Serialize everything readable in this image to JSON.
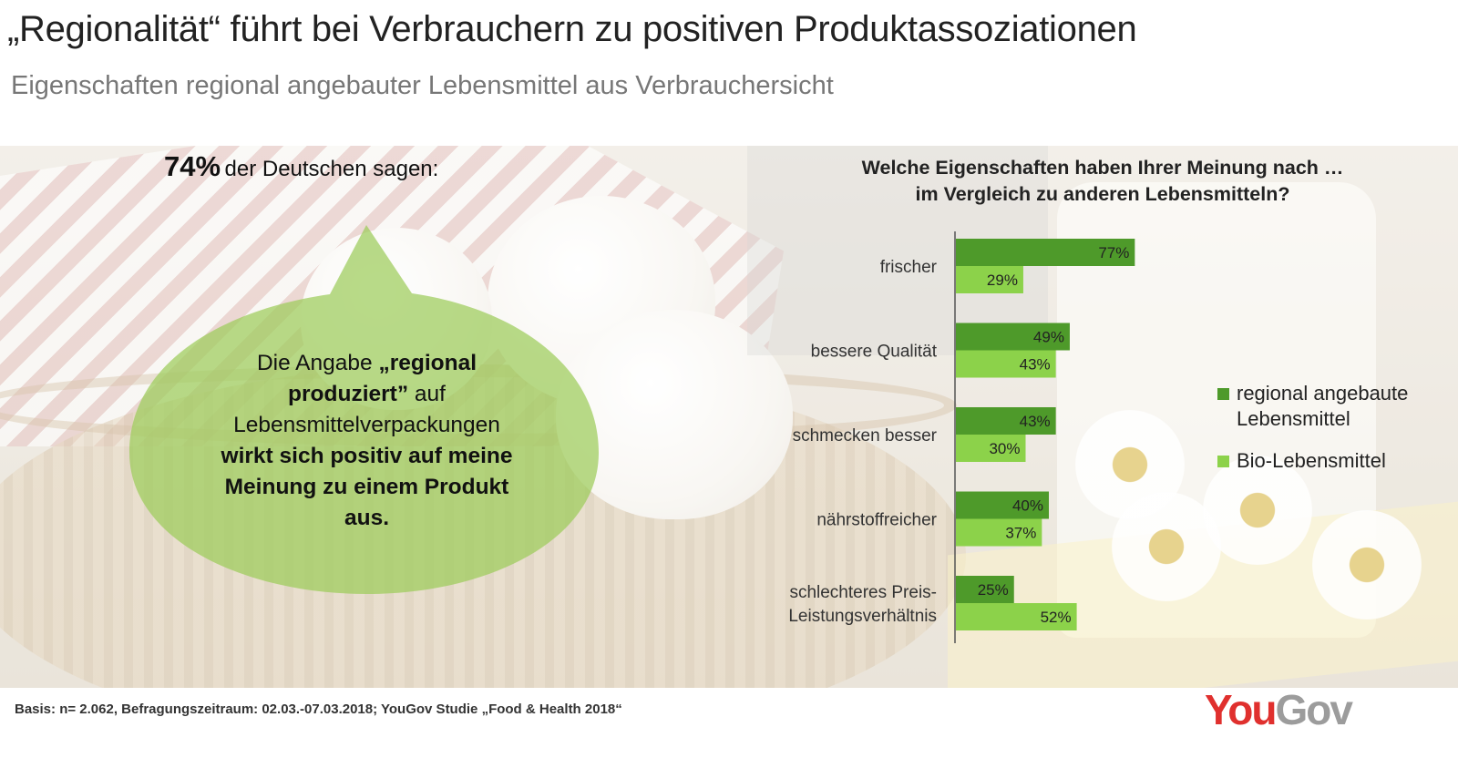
{
  "header": {
    "title": "„Regionalität“ führt bei Verbrauchern zu positiven Produktassoziationen",
    "subtitle": "Eigenschaften regional angebauter Lebensmittel aus Verbrauchersicht"
  },
  "callout": {
    "percent": "74%",
    "rest": "der Deutschen  sagen:",
    "bubble_intro": "Die Angabe ",
    "bubble_bold_1": "„regional produziert”",
    "bubble_middle": " auf Lebensmittelverpackungen ",
    "bubble_bold_2": "wirkt sich positiv auf meine Meinung zu einem Produkt aus.",
    "bubble_color": "#9ccc5a"
  },
  "footer": {
    "basis": "Basis: n= 2.062, Befragungszeitraum: 02.03.-07.03.2018; YouGov Studie „Food & Health 2018“"
  },
  "logo": {
    "you": "You",
    "gov": "Gov"
  },
  "chart_data": {
    "type": "bar",
    "orientation": "horizontal",
    "title": "Welche Eigenschaften haben Ihrer Meinung nach … im Vergleich zu anderen Lebensmitteln?",
    "title_lines": [
      "Welche Eigenschaften haben Ihrer Meinung nach …",
      "im Vergleich zu anderen Lebensmitteln?"
    ],
    "categories": [
      "frischer",
      "bessere Qualität",
      "schmecken besser",
      "nährstoffreicher",
      "schlechteres Preis-Leistungsverhältnis"
    ],
    "category_lines": [
      [
        "frischer"
      ],
      [
        "bessere Qualität"
      ],
      [
        "schmecken besser"
      ],
      [
        "nährstoffreicher"
      ],
      [
        "schlechteres Preis-",
        "Leistungsverhältnis"
      ]
    ],
    "series": [
      {
        "name": "regional angebaute Lebensmittel",
        "name_lines": [
          "regional angebaute",
          "Lebensmittel"
        ],
        "color": "#4e9a2a",
        "values": [
          77,
          49,
          43,
          40,
          25
        ],
        "labels": [
          "77%",
          "49%",
          "43%",
          "40%",
          "25%"
        ]
      },
      {
        "name": "Bio-Lebensmittel",
        "name_lines": [
          "Bio-Lebensmittel"
        ],
        "color": "#8cd24a",
        "values": [
          29,
          43,
          30,
          37,
          52
        ],
        "labels": [
          "29%",
          "43%",
          "30%",
          "37%",
          "52%"
        ]
      }
    ],
    "unit": "%",
    "xlim": [
      0,
      100
    ],
    "grid": false,
    "legend_position": "right"
  }
}
